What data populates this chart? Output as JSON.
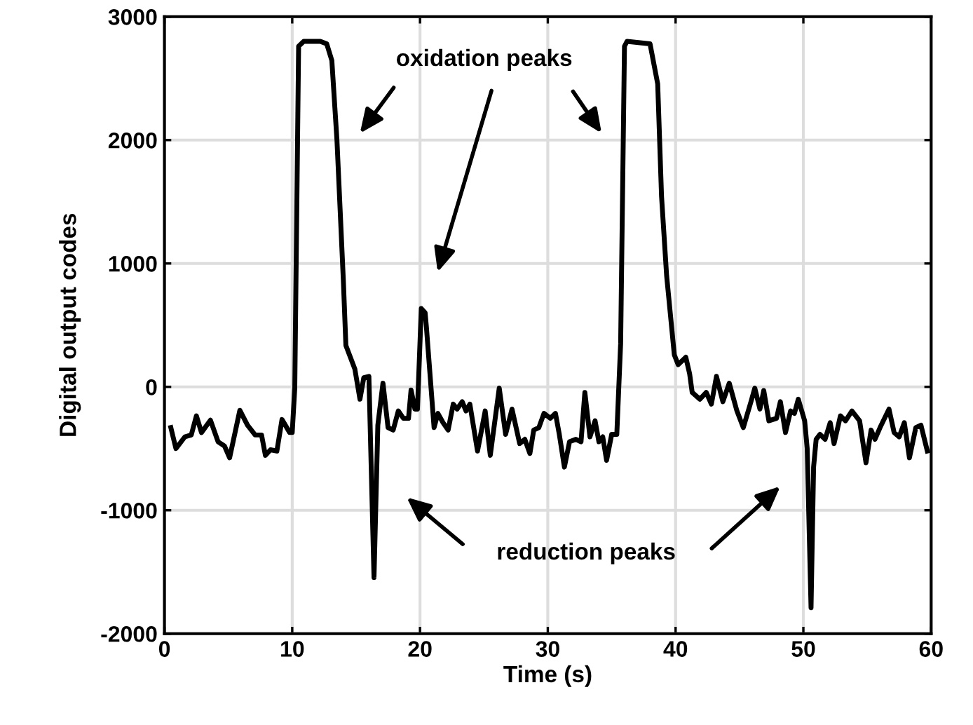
{
  "chart_data": {
    "type": "line",
    "xlabel": "Time (s)",
    "ylabel": "Digital output codes",
    "annotations": [
      "oxidation peaks",
      "reduction peaks"
    ],
    "xlim": [
      0,
      60
    ],
    "xticks": [
      0,
      10,
      20,
      30,
      40,
      50,
      60
    ],
    "ylim": [
      -2000,
      3000
    ],
    "yticks": [
      -2000,
      -1000,
      0,
      1000,
      2000,
      3000
    ],
    "grid": true,
    "legend": false,
    "marker": "none",
    "line_style": "solid",
    "series": [
      {
        "color": "#000000",
        "x": [
          0.5,
          0.9,
          1.6,
          2.1,
          2.5,
          2.9,
          3.6,
          4.2,
          4.7,
          5.1,
          5.9,
          6.5,
          7.1,
          7.6,
          7.9,
          8.3,
          8.8,
          9.2,
          9.8,
          10.0,
          10.2,
          10.5,
          10.9,
          12.2,
          12.7,
          13.1,
          13.5,
          14.0,
          14.2,
          14.9,
          15.3,
          15.6,
          16.0,
          16.4,
          16.7,
          17.1,
          17.5,
          17.9,
          18.3,
          18.7,
          19.1,
          19.3,
          19.6,
          19.8,
          20.1,
          20.4,
          20.5,
          21.1,
          21.4,
          21.8,
          22.2,
          22.6,
          22.9,
          23.3,
          23.6,
          23.9,
          24.5,
          25.1,
          25.5,
          26.2,
          26.7,
          27.2,
          27.8,
          28.2,
          28.6,
          28.9,
          29.3,
          29.7,
          30.2,
          30.6,
          30.9,
          31.3,
          31.7,
          32.2,
          32.6,
          32.9,
          33.3,
          33.7,
          34.0,
          34.3,
          34.6,
          35.0,
          35.4,
          35.7,
          36.0,
          36.2,
          38.0,
          38.6,
          38.9,
          39.3,
          39.9,
          40.2,
          40.8,
          41.1,
          41.3,
          41.9,
          42.4,
          42.8,
          43.2,
          43.7,
          44.2,
          44.8,
          45.3,
          45.9,
          46.2,
          46.6,
          46.9,
          47.3,
          47.9,
          48.2,
          48.6,
          49.0,
          49.3,
          49.6,
          50.1,
          50.3,
          50.6,
          50.8,
          51.0,
          51.3,
          51.7,
          52.1,
          52.4,
          52.9,
          53.3,
          53.8,
          54.4,
          54.9,
          55.3,
          55.6,
          56.0,
          56.7,
          57.1,
          57.5,
          57.9,
          58.3,
          58.8,
          59.2,
          59.7
        ],
        "values": [
          -330,
          -500,
          -405,
          -390,
          -235,
          -370,
          -270,
          -445,
          -480,
          -575,
          -190,
          -310,
          -390,
          -390,
          -555,
          -510,
          -520,
          -265,
          -370,
          -370,
          -10,
          2760,
          2800,
          2800,
          2780,
          2645,
          2000,
          865,
          335,
          145,
          -100,
          75,
          85,
          -1545,
          -310,
          30,
          -330,
          -350,
          -195,
          -255,
          -255,
          -25,
          -180,
          -180,
          635,
          600,
          485,
          -330,
          -215,
          -290,
          -350,
          -140,
          -180,
          -120,
          -195,
          -140,
          -520,
          -195,
          -555,
          -10,
          -385,
          -180,
          -460,
          -425,
          -540,
          -350,
          -330,
          -215,
          -255,
          -215,
          -385,
          -650,
          -445,
          -425,
          -445,
          -45,
          -405,
          -275,
          -445,
          -405,
          -595,
          -385,
          -385,
          350,
          2760,
          2800,
          2780,
          2455,
          1545,
          900,
          260,
          180,
          240,
          105,
          -45,
          -100,
          -45,
          -140,
          85,
          -120,
          30,
          -195,
          -330,
          -120,
          -10,
          -180,
          -30,
          -275,
          -255,
          -120,
          -370,
          -195,
          -215,
          -100,
          -275,
          -500,
          -1790,
          -650,
          -425,
          -385,
          -425,
          -290,
          -460,
          -235,
          -275,
          -195,
          -275,
          -615,
          -350,
          -425,
          -330,
          -180,
          -370,
          -405,
          -290,
          -575,
          -330,
          -310,
          -520
        ]
      }
    ]
  }
}
